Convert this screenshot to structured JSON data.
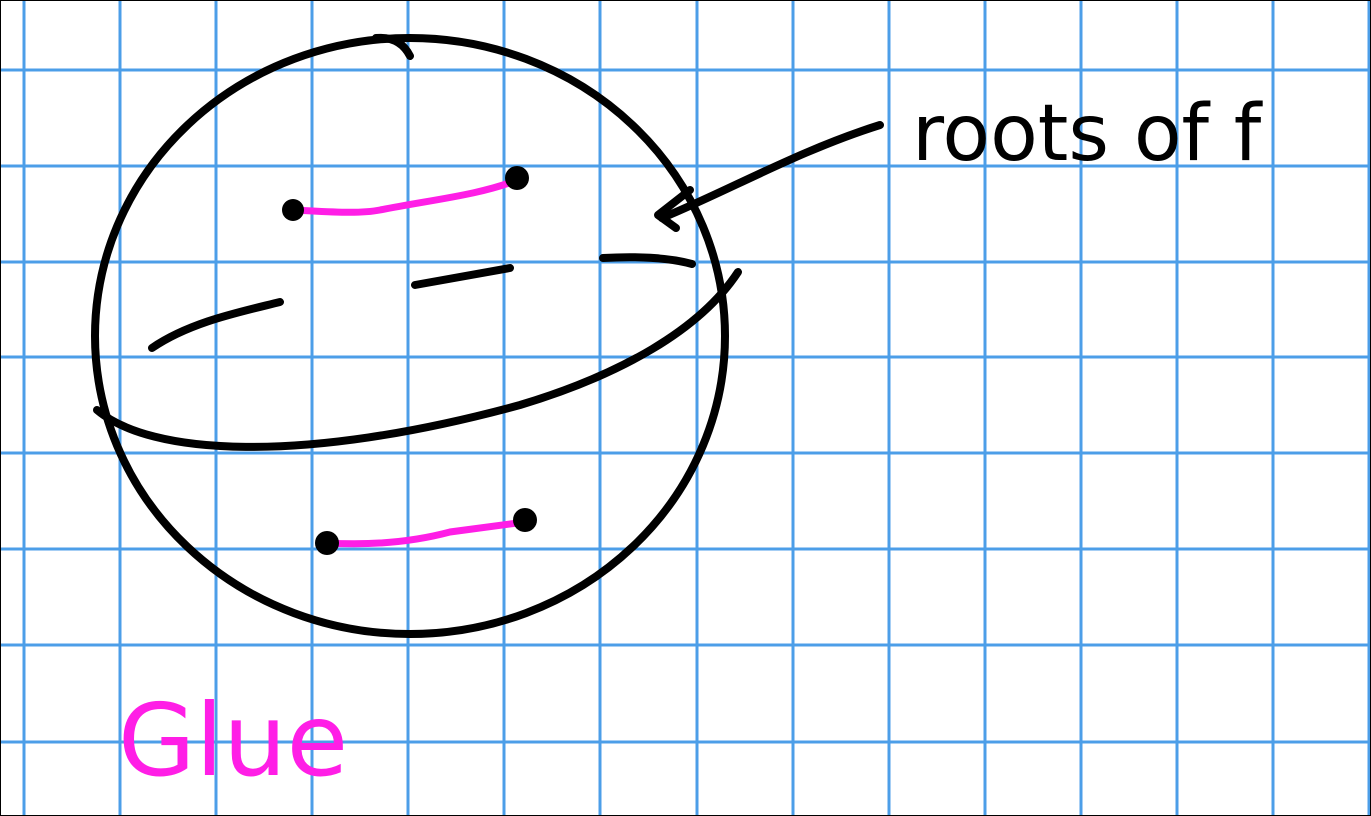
{
  "annotations": {
    "roots_label": "roots of f",
    "glue_label": "Glue"
  }
}
